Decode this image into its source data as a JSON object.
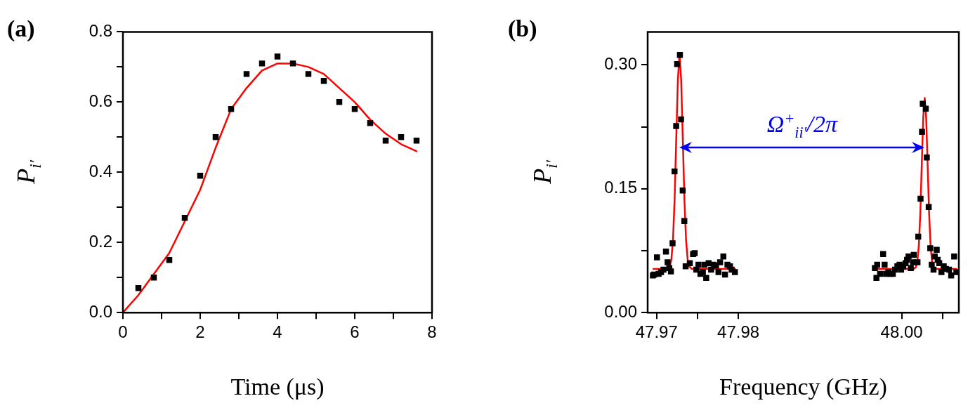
{
  "chart_data": [
    {
      "type": "scatter",
      "title": "(a)",
      "xlabel": "Time (μs)",
      "ylabel": "P$_{i′}$",
      "xlim": [
        0,
        8
      ],
      "ylim": [
        0,
        0.8
      ],
      "xticks": [
        0,
        {
          "value": 1,
          "label": null
        },
        2,
        {
          "value": 3,
          "label": null
        },
        4,
        {
          "value": 5,
          "label": null
        },
        6,
        {
          "value": 7,
          "label": null
        },
        8
      ],
      "yticks": [
        {
          "value": 0,
          "label": "0.0"
        },
        {
          "value": 0.1,
          "label": null
        },
        0.2,
        {
          "value": 0.3,
          "label": null
        },
        0.4,
        {
          "value": 0.5,
          "label": null
        },
        0.6,
        {
          "value": 0.7,
          "label": null
        },
        0.8
      ],
      "series": [
        {
          "type": "scatter",
          "marker": "square",
          "color": "#000000",
          "x": [
            0.4,
            0.8,
            1.2,
            1.6,
            2.0,
            2.4,
            2.8,
            3.2,
            3.6,
            4.0,
            4.4,
            4.8,
            5.2,
            5.6,
            6.0,
            6.4,
            6.8,
            7.2,
            7.6
          ],
          "values": [
            0.07,
            0.1,
            0.15,
            0.27,
            0.39,
            0.5,
            0.58,
            0.68,
            0.71,
            0.73,
            0.71,
            0.68,
            0.66,
            0.6,
            0.58,
            0.54,
            0.49,
            0.5,
            0.49
          ]
        },
        {
          "type": "line",
          "marker": "none",
          "color": "#ff0000",
          "x": [
            0,
            0.4,
            0.8,
            1.2,
            1.6,
            2.0,
            2.4,
            2.8,
            3.2,
            3.6,
            4.0,
            4.4,
            4.8,
            5.2,
            5.6,
            6.0,
            6.4,
            6.8,
            7.2,
            7.6
          ],
          "values": [
            0,
            0.05,
            0.11,
            0.17,
            0.26,
            0.35,
            0.47,
            0.58,
            0.64,
            0.69,
            0.71,
            0.71,
            0.7,
            0.68,
            0.64,
            0.6,
            0.55,
            0.51,
            0.48,
            0.46
          ]
        }
      ]
    },
    {
      "type": "scatter",
      "title": "(b)",
      "xlabel": "Frequency (GHz)",
      "ylabel": "P$_{i′}$",
      "xlim": [
        47.9689,
        48.007
      ],
      "ylim": [
        0,
        0.34
      ],
      "xticks": [
        47.97,
        {
          "value": 47.975,
          "label": null
        },
        47.98,
        {
          "value": 48,
          "label": "48.00"
        },
        {
          "value": 48.005,
          "label": null
        }
      ],
      "yticks": [
        {
          "value": 0,
          "label": "0.00"
        },
        {
          "value": 0.075,
          "label": null
        },
        {
          "value": 0.15,
          "label": "0.15"
        },
        {
          "value": 0.225,
          "label": null
        },
        {
          "value": 0.3,
          "label": "0.30"
        }
      ],
      "annotations": [
        "Ω$^{+}$$_{ii′}$/2π"
      ],
      "series": [
        {
          "type": "scatter",
          "marker": "square",
          "color": "#000000",
          "x": [
            47.96954,
            47.9697,
            47.97004,
            47.97024,
            47.97054,
            47.97084,
            47.97114,
            47.97134,
            47.97155,
            47.97175,
            47.97195,
            47.97219,
            47.97239,
            47.97251,
            47.97285,
            47.97299,
            47.97319,
            47.97339,
            47.97355,
            47.97406,
            47.97446,
            47.97466,
            47.97486,
            47.97512,
            47.97536,
            47.97566,
            47.97586,
            47.97607,
            47.97637,
            47.97667,
            47.97697,
            47.97727,
            47.97757,
            47.97777,
            47.97817,
            47.97837,
            47.97867,
            47.97898,
            47.97918,
            47.97958,
            47.99672,
            47.99691,
            47.997,
            47.99736,
            47.99773,
            47.99791,
            47.99809,
            47.99837,
            47.99864,
            47.99892,
            47.99919,
            47.99947,
            47.99974,
            47.99993,
            48.0002,
            48.00048,
            48.00066,
            48.00084,
            48.00112,
            48.00139,
            48.00148,
            48.00194,
            48.00203,
            48.00231,
            48.00249,
            48.00258,
            48.00295,
            48.00308,
            48.00331,
            48.0035,
            48.00368,
            48.0039,
            48.00405,
            48.00429,
            48.00441,
            48.0046,
            48.00487,
            48.00515,
            48.00542,
            48.00579,
            48.00606,
            48.00643,
            48.0067
          ],
          "values": [
            0.045,
            0.046,
            0.067,
            0.047,
            0.049,
            0.052,
            0.074,
            0.061,
            0.054,
            0.05,
            0.084,
            0.171,
            0.226,
            0.301,
            0.312,
            0.234,
            0.148,
            0.111,
            0.056,
            0.06,
            0.071,
            0.072,
            0.052,
            0.058,
            0.047,
            0.049,
            0.058,
            0.042,
            0.06,
            0.052,
            0.058,
            0.057,
            0.049,
            0.061,
            0.068,
            0.046,
            0.058,
            0.056,
            0.052,
            0.049,
            0.054,
            0.042,
            0.058,
            0.047,
            0.071,
            0.058,
            0.047,
            0.049,
            0.047,
            0.047,
            0.052,
            0.056,
            0.058,
            0.052,
            0.056,
            0.06,
            0.064,
            0.068,
            0.054,
            0.061,
            0.07,
            0.061,
            0.092,
            0.138,
            0.219,
            0.253,
            0.247,
            0.188,
            0.128,
            0.078,
            0.058,
            0.052,
            0.068,
            0.076,
            0.064,
            0.06,
            0.049,
            0.056,
            0.053,
            0.052,
            0.045,
            0.068,
            0.049
          ]
        },
        {
          "type": "line",
          "marker": "none",
          "color": "#ff0000",
          "x": [
            47.9696,
            47.9713,
            47.9716,
            47.9718,
            47.972,
            47.9722,
            47.9724,
            47.9726,
            47.9728,
            47.973,
            47.9732,
            47.9734,
            47.9736,
            47.9738,
            47.974,
            47.9743,
            47.9796
          ],
          "values": [
            0.053,
            0.053,
            0.056,
            0.064,
            0.088,
            0.137,
            0.211,
            0.282,
            0.313,
            0.282,
            0.211,
            0.137,
            0.088,
            0.064,
            0.056,
            0.053,
            0.053
          ]
        },
        {
          "type": "line",
          "marker": "none",
          "color": "#ff0000",
          "x": [
            47.99672,
            48.00147,
            48.00174,
            48.00192,
            48.0021,
            48.00228,
            48.00246,
            48.00264,
            48.00282,
            48.003,
            48.00318,
            48.00336,
            48.00354,
            48.00372,
            48.0039,
            48.00417,
            48.0067
          ],
          "values": [
            0.053,
            0.053,
            0.055,
            0.062,
            0.081,
            0.12,
            0.179,
            0.236,
            0.26,
            0.236,
            0.179,
            0.12,
            0.081,
            0.062,
            0.055,
            0.053,
            0.053
          ]
        }
      ]
    }
  ]
}
